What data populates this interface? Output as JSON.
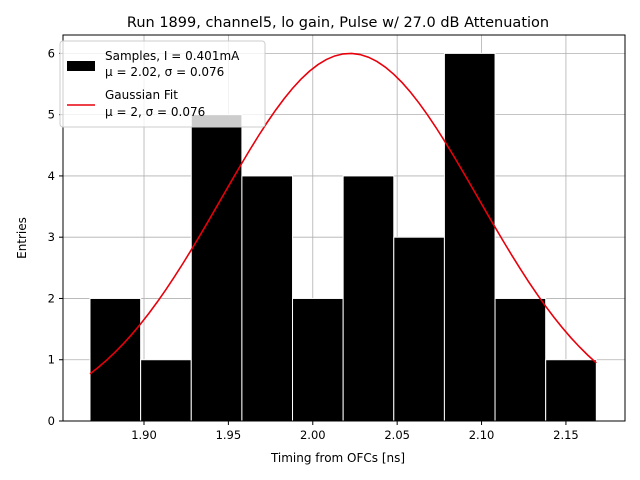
{
  "chart_data": {
    "type": "bar",
    "title": "Run 1899, channel5, lo gain, Pulse w/ 27.0 dB Attenuation",
    "xlabel": "Timing from OFCs [ns]",
    "ylabel": "Entries",
    "xlim": [
      1.852,
      2.185
    ],
    "ylim": [
      0,
      6.3
    ],
    "xticks": [
      1.9,
      1.95,
      2.0,
      2.05,
      2.1,
      2.15
    ],
    "xtick_labels": [
      "1.90",
      "1.95",
      "2.00",
      "2.05",
      "2.10",
      "2.15"
    ],
    "yticks": [
      0,
      1,
      2,
      3,
      4,
      5,
      6
    ],
    "ytick_labels": [
      "0",
      "1",
      "2",
      "3",
      "4",
      "5",
      "6"
    ],
    "grid": true,
    "legend_position": "top-left",
    "histogram": {
      "bin_edges": [
        1.868,
        1.898,
        1.928,
        1.958,
        1.988,
        2.018,
        2.048,
        2.078,
        2.108,
        2.138,
        2.168
      ],
      "counts": [
        2,
        1,
        5,
        4,
        2,
        4,
        3,
        6,
        2,
        1
      ],
      "color": "#000000",
      "edge_color": "#ffffff"
    },
    "fit": {
      "type": "gaussian",
      "amplitude": 6.0,
      "mean": 2.022,
      "sigma": 0.076,
      "x_range": [
        1.868,
        2.168
      ],
      "color": "#e8000b"
    },
    "legend": [
      {
        "kind": "patch",
        "line1": "Samples, I = 0.401mA",
        "line2": "μ = 2.02, σ = 0.076",
        "color": "#000000"
      },
      {
        "kind": "line",
        "line1": "Gaussian Fit",
        "line2": "μ = 2, σ = 0.076",
        "color": "#e8000b"
      }
    ]
  }
}
